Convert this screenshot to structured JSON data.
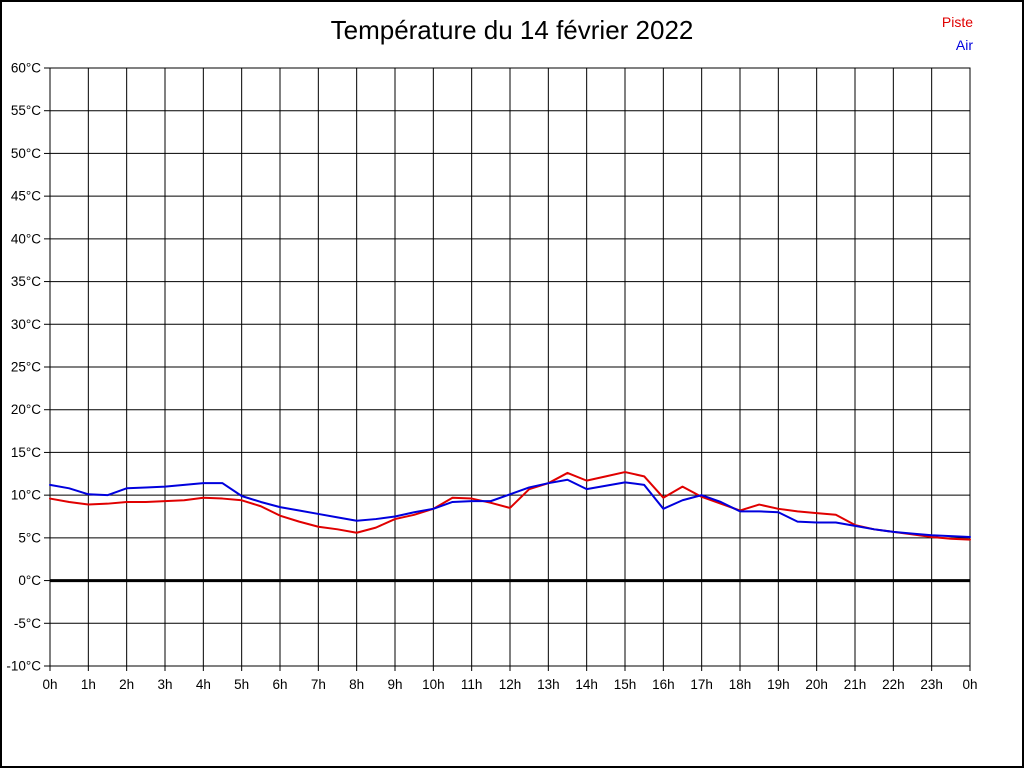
{
  "title": "Température du 14 février 2022",
  "legend": [
    {
      "label": "Piste",
      "color": "#e00000"
    },
    {
      "label": "Air",
      "color": "#0000dd"
    }
  ],
  "colors": {
    "background": "#ffffff",
    "border": "#000000",
    "grid": "#000000",
    "zero_line": "#000000",
    "text": "#000000"
  },
  "chart_data": {
    "type": "line",
    "title": "Température du 14 février 2022",
    "xlabel": "",
    "ylabel": "",
    "xlim": [
      0,
      24
    ],
    "ylim": [
      -10,
      60
    ],
    "y_step": 5,
    "grid": true,
    "legend_position": "top-right",
    "x_tick_labels": [
      "0h",
      "1h",
      "2h",
      "3h",
      "4h",
      "5h",
      "6h",
      "7h",
      "8h",
      "9h",
      "10h",
      "11h",
      "12h",
      "13h",
      "14h",
      "15h",
      "16h",
      "17h",
      "18h",
      "19h",
      "20h",
      "21h",
      "22h",
      "23h",
      "0h"
    ],
    "y_tick_labels": [
      "60°C",
      "55°C",
      "50°C",
      "45°C",
      "40°C",
      "35°C",
      "30°C",
      "25°C",
      "20°C",
      "15°C",
      "10°C",
      "5°C",
      "0°C",
      "-5°C",
      "-10°C"
    ],
    "y_tick_values": [
      60,
      55,
      50,
      45,
      40,
      35,
      30,
      25,
      20,
      15,
      10,
      5,
      0,
      -5,
      -10
    ],
    "x_start": 0,
    "x_step_hours": 0.5,
    "series": [
      {
        "name": "Piste",
        "color": "#e00000",
        "values": [
          9.6,
          9.2,
          8.9,
          9.0,
          9.2,
          9.2,
          9.3,
          9.4,
          9.7,
          9.6,
          9.4,
          8.7,
          7.6,
          6.9,
          6.3,
          6.0,
          5.6,
          6.2,
          7.2,
          7.7,
          8.4,
          9.7,
          9.6,
          9.1,
          8.5,
          10.7,
          11.4,
          12.6,
          11.7,
          12.2,
          12.7,
          12.2,
          9.7,
          11.0,
          9.8,
          9.0,
          8.2,
          8.9,
          8.4,
          8.1,
          7.9,
          7.7,
          6.5,
          6.0,
          5.7,
          5.4,
          5.1,
          4.9,
          4.8
        ]
      },
      {
        "name": "Air",
        "color": "#0000dd",
        "values": [
          11.2,
          10.8,
          10.1,
          10.0,
          10.8,
          10.9,
          11.0,
          11.2,
          11.4,
          11.4,
          9.9,
          9.2,
          8.6,
          8.2,
          7.8,
          7.4,
          7.0,
          7.2,
          7.5,
          8.0,
          8.4,
          9.2,
          9.3,
          9.3,
          10.1,
          10.9,
          11.4,
          11.8,
          10.7,
          11.1,
          11.5,
          11.2,
          8.4,
          9.4,
          10.0,
          9.2,
          8.1,
          8.1,
          8.0,
          6.9,
          6.8,
          6.8,
          6.4,
          6.0,
          5.7,
          5.5,
          5.3,
          5.2,
          5.1
        ]
      }
    ]
  }
}
